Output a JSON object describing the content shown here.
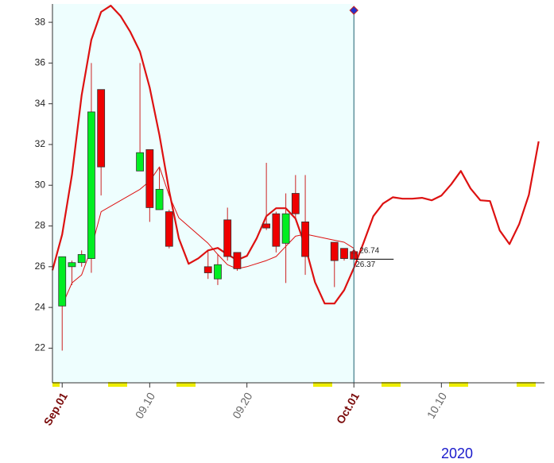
{
  "chart_data": {
    "type": "candlestick",
    "xlim": [
      -1,
      49.6
    ],
    "ylim": [
      20.3,
      38.9
    ],
    "yticks": [
      22,
      24,
      26,
      28,
      30,
      32,
      34,
      36,
      38
    ],
    "xticks": [
      {
        "value": 0,
        "label": "Sep.01"
      },
      {
        "value": 9,
        "label": "09.10"
      },
      {
        "value": 19,
        "label": "09.20"
      },
      {
        "value": 30,
        "label": "Oct.01"
      },
      {
        "value": 39,
        "label": "10.10"
      }
    ],
    "year_label": "2020",
    "up_color": "#00ee22",
    "down_color": "#ee0000",
    "candles": {
      "x": [
        0,
        1,
        2,
        3,
        4,
        8,
        9,
        10,
        11,
        15,
        16,
        17,
        18,
        21,
        22,
        23,
        24,
        25,
        28,
        29,
        30
      ],
      "open": [
        24.07,
        26.0,
        26.2,
        26.4,
        34.7,
        30.7,
        31.75,
        28.8,
        28.7,
        26.0,
        25.4,
        28.3,
        26.7,
        28.1,
        28.6,
        27.15,
        29.6,
        28.2,
        27.2,
        26.9,
        26.74
      ],
      "high": [
        26.49,
        26.3,
        26.8,
        36.0,
        34.7,
        36.0,
        31.75,
        30.9,
        28.8,
        26.8,
        26.6,
        28.9,
        26.7,
        31.1,
        28.7,
        29.6,
        30.5,
        30.5,
        27.2,
        26.9,
        26.74
      ],
      "low": [
        21.88,
        25.1,
        26.0,
        25.7,
        29.5,
        30.7,
        28.2,
        28.8,
        26.9,
        25.4,
        25.1,
        26.3,
        25.8,
        27.8,
        26.7,
        25.2,
        28.3,
        25.6,
        25.0,
        26.3,
        26.37
      ],
      "close": [
        26.49,
        26.2,
        26.6,
        33.6,
        30.9,
        31.6,
        28.9,
        29.8,
        27.0,
        25.7,
        26.1,
        26.5,
        25.9,
        27.9,
        27.0,
        28.6,
        28.6,
        26.5,
        26.3,
        26.4,
        26.37
      ]
    },
    "lines": [
      {
        "color": "#dd1111",
        "width": 2.2,
        "x": [
          -1,
          0,
          1,
          2,
          3,
          4,
          5,
          6,
          7,
          8,
          9,
          10,
          11,
          12,
          13,
          14,
          15,
          16,
          17,
          18,
          19,
          20,
          21,
          22,
          23,
          24,
          25,
          26,
          27,
          28,
          29,
          30,
          31,
          32,
          33,
          34,
          35,
          36,
          37,
          38,
          39,
          40,
          41,
          42,
          43,
          44,
          45,
          46,
          47,
          48,
          49
        ],
        "values": [
          25.82,
          27.58,
          30.51,
          34.41,
          37.14,
          38.51,
          38.82,
          38.31,
          37.53,
          36.56,
          34.8,
          32.46,
          29.73,
          27.39,
          26.14,
          26.41,
          26.8,
          26.92,
          26.6,
          26.33,
          26.53,
          27.39,
          28.48,
          28.87,
          28.87,
          28.36,
          27.0,
          25.24,
          24.19,
          24.19,
          24.85,
          25.94,
          27.19,
          28.48,
          29.1,
          29.41,
          29.34,
          29.34,
          29.38,
          29.26,
          29.49,
          30.04,
          30.7,
          29.84,
          29.26,
          29.22,
          27.78,
          27.11,
          28.09,
          29.53,
          32.15
        ]
      },
      {
        "color": "#dd1111",
        "width": 1,
        "x": [
          0,
          1,
          2,
          3,
          4,
          8,
          9,
          10,
          11,
          12,
          15,
          16,
          17,
          18,
          19,
          21,
          22,
          23,
          24,
          25,
          28,
          29,
          30
        ],
        "values": [
          24.1,
          25.2,
          25.6,
          26.9,
          28.7,
          29.8,
          30.2,
          30.9,
          29.5,
          28.4,
          27.15,
          26.6,
          26.1,
          25.9,
          26.0,
          26.3,
          26.5,
          27.0,
          27.5,
          27.6,
          27.3,
          27.2,
          26.9
        ]
      }
    ]
  }
}
